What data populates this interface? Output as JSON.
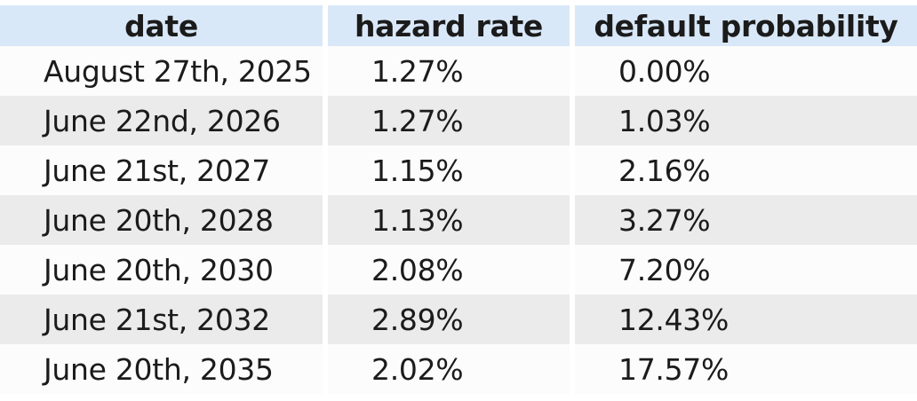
{
  "chart_data": {
    "type": "table",
    "title": "",
    "columns": [
      {
        "id": "date",
        "label": "date"
      },
      {
        "id": "hazard_rate",
        "label": "hazard rate"
      },
      {
        "id": "default_probability",
        "label": "default probability"
      }
    ],
    "rows": [
      {
        "date": "August 27th, 2025",
        "hazard_rate": "1.27%",
        "default_probability": "0.00%"
      },
      {
        "date": "June 22nd, 2026",
        "hazard_rate": "1.27%",
        "default_probability": "1.03%"
      },
      {
        "date": "June 21st, 2027",
        "hazard_rate": "1.15%",
        "default_probability": "2.16%"
      },
      {
        "date": "June 20th, 2028",
        "hazard_rate": "1.13%",
        "default_probability": "3.27%"
      },
      {
        "date": "June 20th, 2030",
        "hazard_rate": "2.08%",
        "default_probability": "7.20%"
      },
      {
        "date": "June 21st, 2032",
        "hazard_rate": "2.89%",
        "default_probability": "12.43%"
      },
      {
        "date": "June 20th, 2035",
        "hazard_rate": "2.02%",
        "default_probability": "17.57%"
      }
    ]
  },
  "colors": {
    "header_bg": "#d9e8f8",
    "row_even_bg": "#fcfcfc",
    "row_odd_bg": "#ebebeb",
    "text": "#1b1b1b"
  }
}
